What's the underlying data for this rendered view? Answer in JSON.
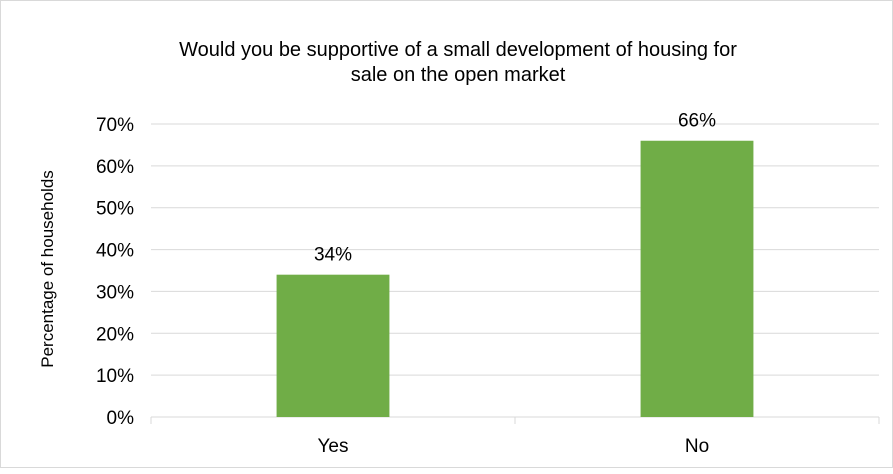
{
  "chart_data": {
    "type": "bar",
    "title_lines": [
      "Would you be supportive of a small development of housing for",
      "sale on the open market"
    ],
    "xlabel": "",
    "ylabel": "Percentage of households",
    "categories": [
      "Yes",
      "No"
    ],
    "values": [
      34,
      66
    ],
    "data_labels": [
      "34%",
      "66%"
    ],
    "y_ticks": [
      "0%",
      "10%",
      "20%",
      "30%",
      "40%",
      "50%",
      "60%",
      "70%"
    ],
    "ylim": [
      0,
      70
    ],
    "grid": true,
    "legend": "none",
    "bar_color": "#70ad47",
    "grid_color": "#d9d9d9",
    "text_color": "#000000"
  }
}
